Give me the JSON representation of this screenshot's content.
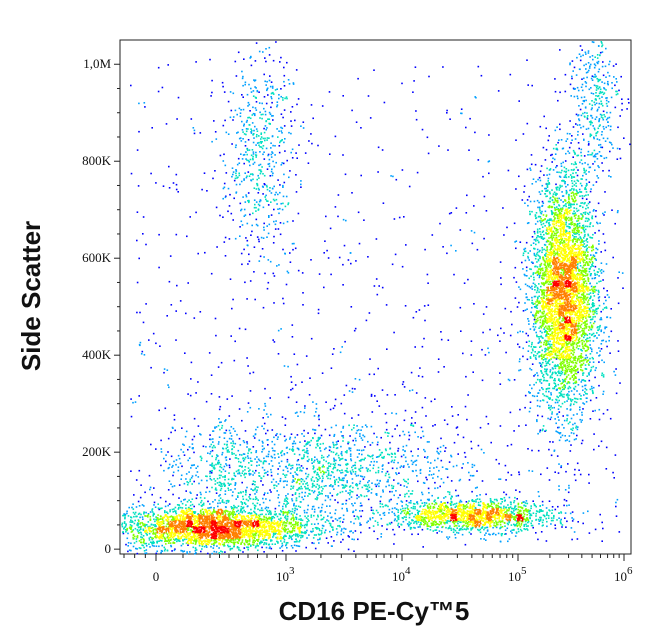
{
  "chart_data": {
    "type": "scatter",
    "style": "flow-cytometry density dot plot",
    "title": "",
    "xlabel": "CD16 PE-Cy™5",
    "ylabel": "Side Scatter",
    "x_scale": "biexponential",
    "x_range": [
      -300,
      1200000
    ],
    "y_range": [
      -10000,
      1050000
    ],
    "grid": false,
    "x_ticks": [
      {
        "value": 0,
        "label": "0"
      },
      {
        "value": 1000,
        "label": "10",
        "exp": "3"
      },
      {
        "value": 10000,
        "label": "10",
        "exp": "4"
      },
      {
        "value": 100000,
        "label": "10",
        "exp": "5"
      },
      {
        "value": 1000000,
        "label": "10",
        "exp": "6"
      }
    ],
    "y_ticks": [
      {
        "value": 0,
        "label": "0"
      },
      {
        "value": 200000,
        "label": "200K"
      },
      {
        "value": 400000,
        "label": "400K"
      },
      {
        "value": 600000,
        "label": "600K"
      },
      {
        "value": 800000,
        "label": "800K"
      },
      {
        "value": 1000000,
        "label": "1,0M"
      }
    ],
    "density_colors": [
      "#0000ff",
      "#00a0ff",
      "#00e0c0",
      "#80ff00",
      "#ffff00",
      "#ff8000",
      "#ff0000"
    ],
    "populations": [
      {
        "cx": 220,
        "cy": 45000,
        "sx": 0.26,
        "sy": 22000,
        "count": 2800
      },
      {
        "cx": 40000,
        "cy": 70000,
        "sx": 0.16,
        "sy": 16000,
        "count": 1400
      },
      {
        "cx": 1600,
        "cy": 160000,
        "sx": 0.3,
        "sy": 55000,
        "count": 1500
      },
      {
        "cx": 700,
        "cy": 820000,
        "sx": 0.1,
        "sy": 110000,
        "count": 550
      },
      {
        "cx": 270000,
        "cy": 530000,
        "sx": 0.07,
        "sy": 120000,
        "count": 4200
      },
      {
        "cx": 500000,
        "cy": 930000,
        "sx": 0.06,
        "sy": 80000,
        "count": 350
      }
    ]
  }
}
